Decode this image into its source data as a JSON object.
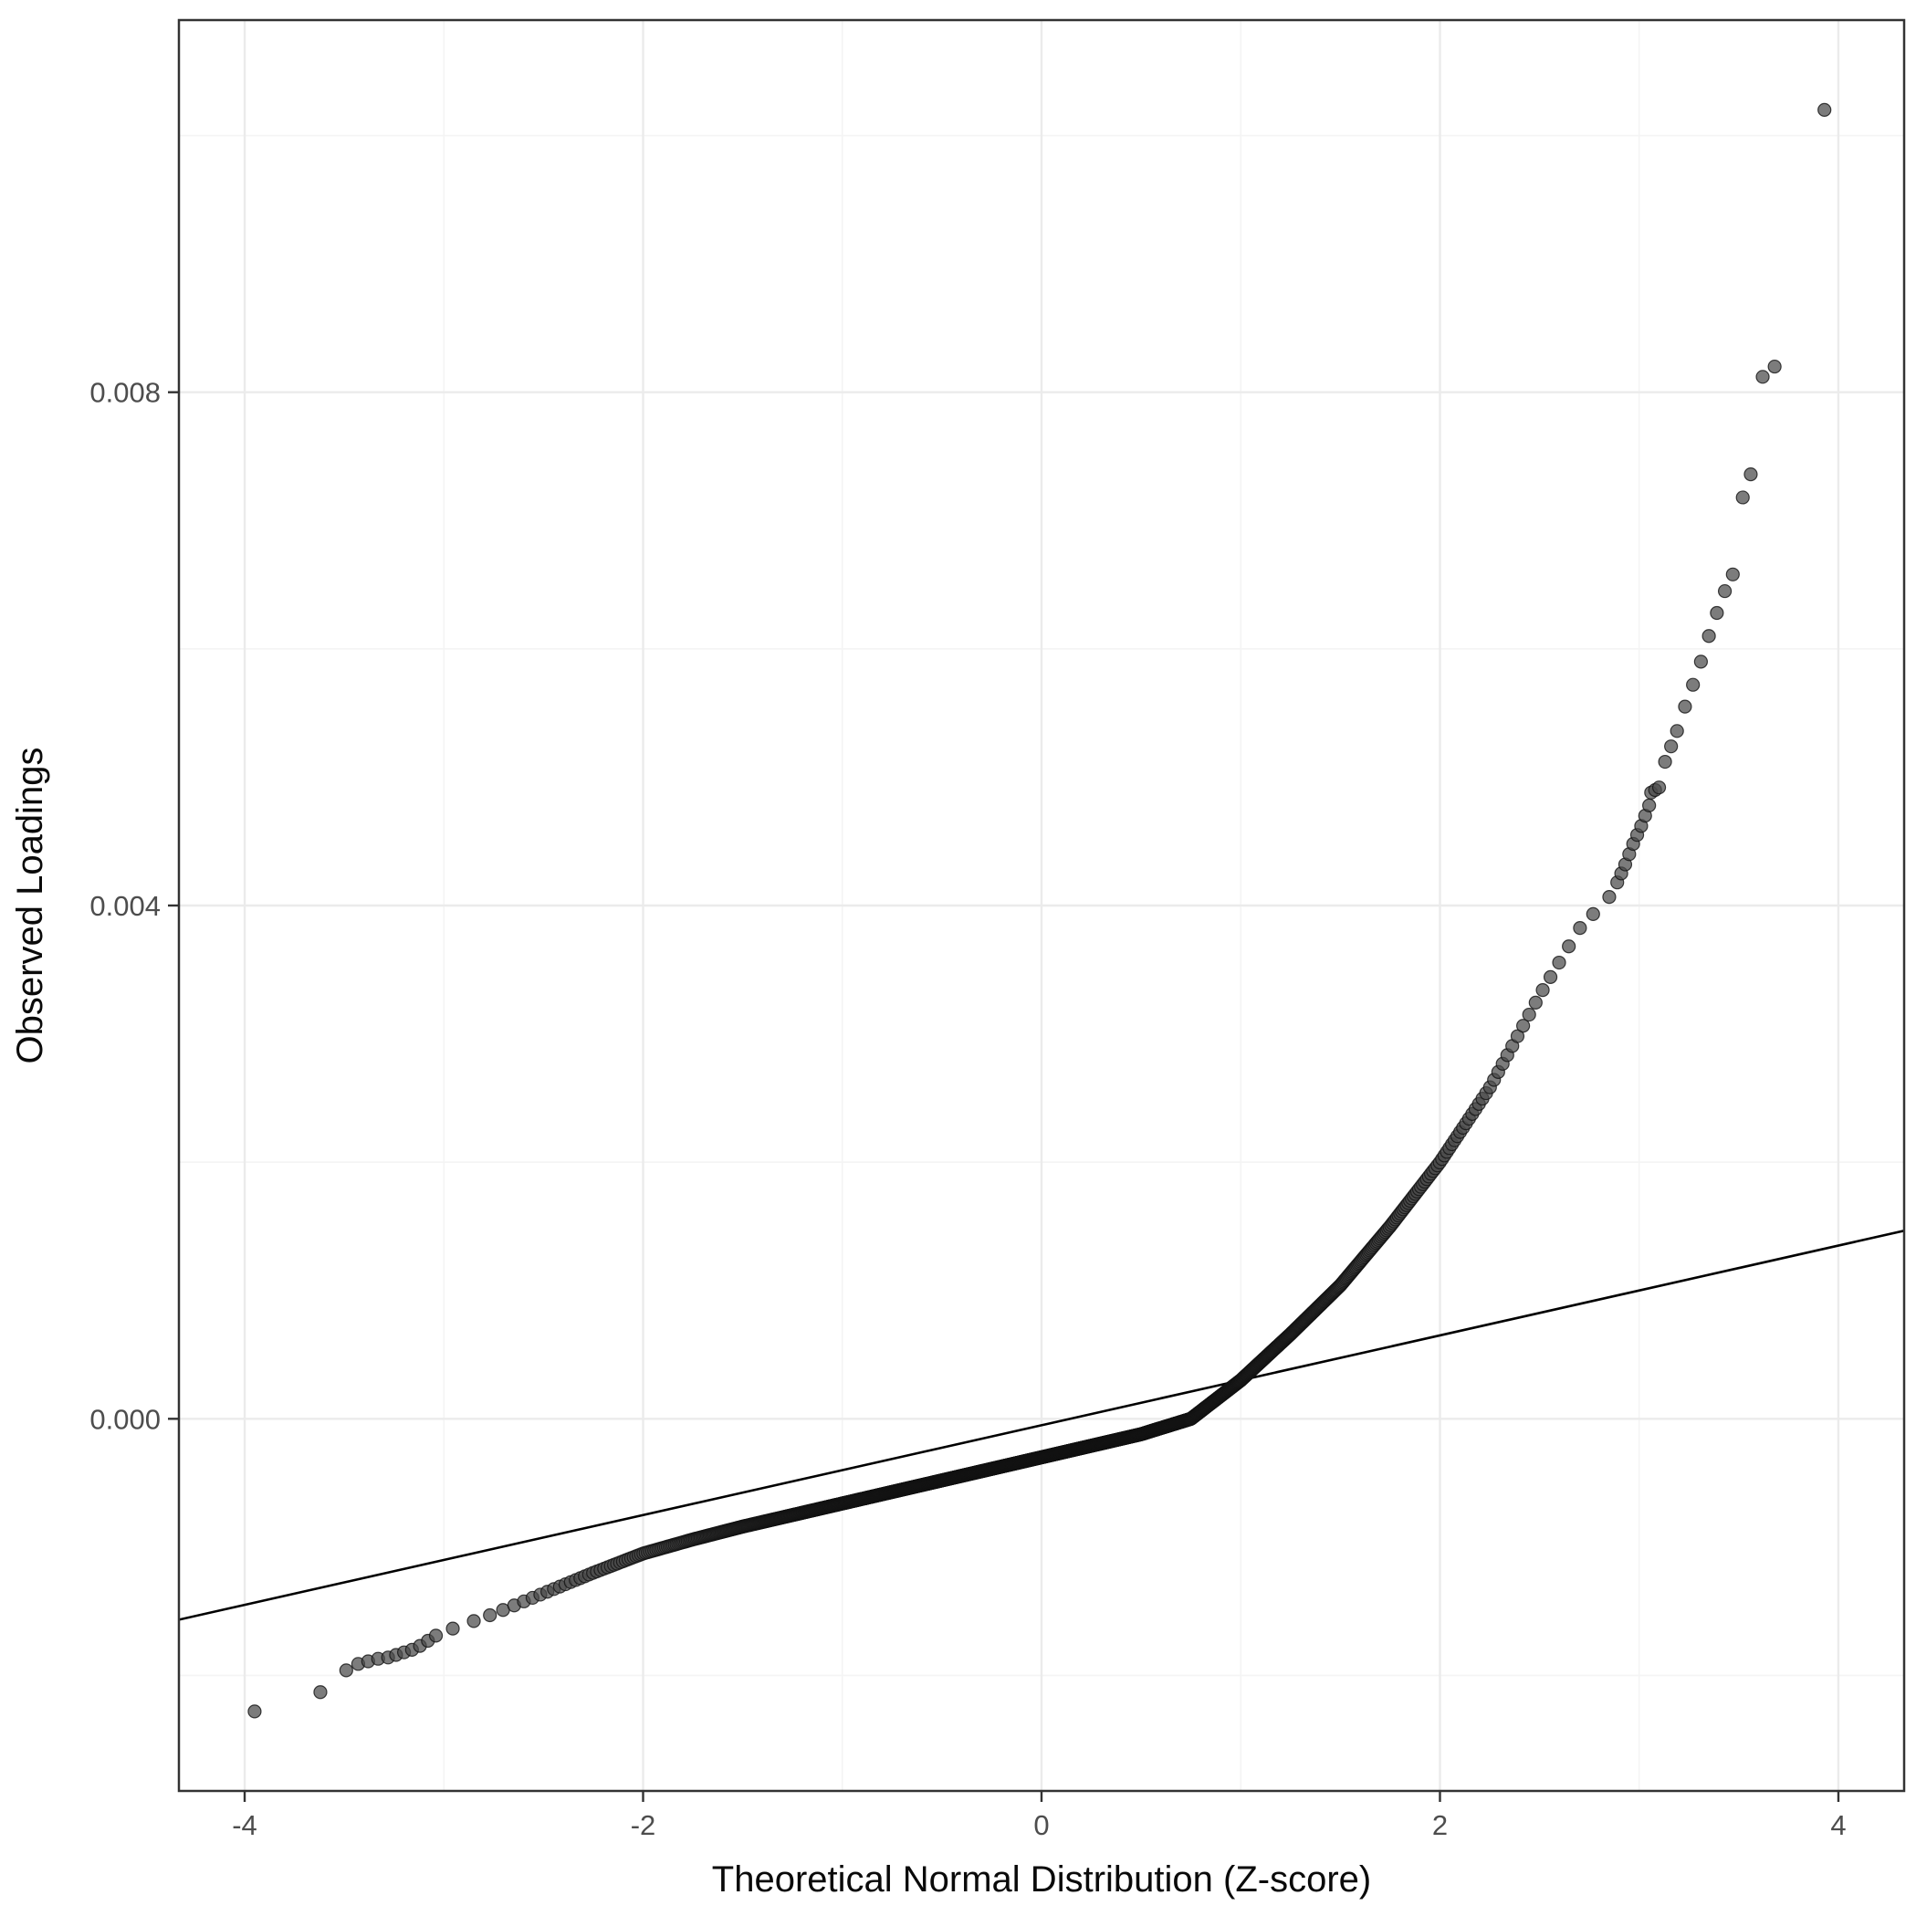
{
  "figure": {
    "background": "#FFFFFF",
    "panel_background": "#FFFFFF",
    "panel_border_color": "#333333",
    "grid_major_color": "#EBEBEB",
    "grid_minor_color": "#F4F4F4",
    "point_fill": "#4A4A4A",
    "point_stroke": "#111111",
    "reference_line_color": "#000000",
    "tick_color": "#333333"
  },
  "chart_data": {
    "type": "scatter",
    "title": "",
    "xlabel": "Theoretical Normal Distribution (Z-score)",
    "ylabel": "Observed Loadings",
    "xlim": [
      -4.33,
      4.33
    ],
    "ylim": [
      -0.0029,
      0.0109
    ],
    "grid": true,
    "legend_position": "none",
    "x_ticks": [
      {
        "value": -4,
        "label": "-4"
      },
      {
        "value": -2,
        "label": "-2"
      },
      {
        "value": 0,
        "label": "0"
      },
      {
        "value": 2,
        "label": "2"
      },
      {
        "value": 4,
        "label": "4"
      }
    ],
    "y_ticks": [
      {
        "value": 0.0,
        "label": "0.000"
      },
      {
        "value": 0.004,
        "label": "0.004"
      },
      {
        "value": 0.008,
        "label": "0.008"
      }
    ],
    "x_minor_ticks": [
      -3,
      -1,
      1,
      3
    ],
    "y_minor_ticks": [
      -0.002,
      0.002,
      0.006,
      0.01
    ],
    "reference_line": {
      "slope": 0.00035,
      "intercept": -5e-05
    },
    "dense_curve": {
      "comment_visible_shape": "dense QQ band of overlapping points from z=-3.0 to z=2.87",
      "n_points": 1600,
      "z_range": [
        -3.0,
        2.87
      ],
      "control_points": [
        [
          -3.0,
          -0.00166
        ],
        [
          -2.75,
          -0.00152
        ],
        [
          -2.5,
          -0.00136
        ],
        [
          -2.25,
          -0.0012
        ],
        [
          -2.0,
          -0.00105
        ],
        [
          -1.75,
          -0.00094
        ],
        [
          -1.5,
          -0.00084
        ],
        [
          -1.25,
          -0.00075
        ],
        [
          -1.0,
          -0.00066
        ],
        [
          -0.75,
          -0.00057
        ],
        [
          -0.5,
          -0.00048
        ],
        [
          -0.25,
          -0.00039
        ],
        [
          0.0,
          -0.0003
        ],
        [
          0.25,
          -0.00021
        ],
        [
          0.5,
          -0.00012
        ],
        [
          0.75,
          0.0
        ],
        [
          1.0,
          0.0003
        ],
        [
          1.25,
          0.00066
        ],
        [
          1.5,
          0.00104
        ],
        [
          1.75,
          0.0015
        ],
        [
          2.0,
          0.002
        ],
        [
          2.25,
          0.00258
        ],
        [
          2.5,
          0.0033
        ],
        [
          2.7,
          0.00382
        ],
        [
          2.87,
          0.0041
        ]
      ]
    },
    "lower_tail_points": [
      [
        -3.95,
        -0.00228
      ],
      [
        -3.62,
        -0.00213
      ],
      [
        -3.49,
        -0.00196
      ],
      [
        -3.43,
        -0.00191
      ],
      [
        -3.38,
        -0.00189
      ],
      [
        -3.33,
        -0.00187
      ],
      [
        -3.28,
        -0.00186
      ],
      [
        -3.24,
        -0.00184
      ],
      [
        -3.2,
        -0.00182
      ],
      [
        -3.16,
        -0.0018
      ],
      [
        -3.12,
        -0.00177
      ],
      [
        -3.08,
        -0.00173
      ],
      [
        -3.04,
        -0.00169
      ]
    ],
    "upper_tail_points": [
      [
        2.89,
        0.00418
      ],
      [
        2.91,
        0.00425
      ],
      [
        2.93,
        0.00432
      ],
      [
        2.95,
        0.0044
      ],
      [
        2.97,
        0.00448
      ],
      [
        2.99,
        0.00455
      ],
      [
        3.01,
        0.00462
      ],
      [
        3.03,
        0.0047
      ],
      [
        3.05,
        0.00478
      ],
      [
        3.06,
        0.00488
      ],
      [
        3.08,
        0.0049
      ],
      [
        3.1,
        0.00492
      ],
      [
        3.13,
        0.00512
      ],
      [
        3.16,
        0.00524
      ],
      [
        3.19,
        0.00536
      ],
      [
        3.23,
        0.00555
      ],
      [
        3.27,
        0.00572
      ],
      [
        3.31,
        0.0059
      ],
      [
        3.35,
        0.0061
      ],
      [
        3.39,
        0.00628
      ],
      [
        3.43,
        0.00645
      ],
      [
        3.47,
        0.00658
      ],
      [
        3.52,
        0.00718
      ],
      [
        3.56,
        0.00736
      ],
      [
        3.62,
        0.00812
      ],
      [
        3.68,
        0.0082
      ],
      [
        3.93,
        0.0102
      ]
    ]
  }
}
